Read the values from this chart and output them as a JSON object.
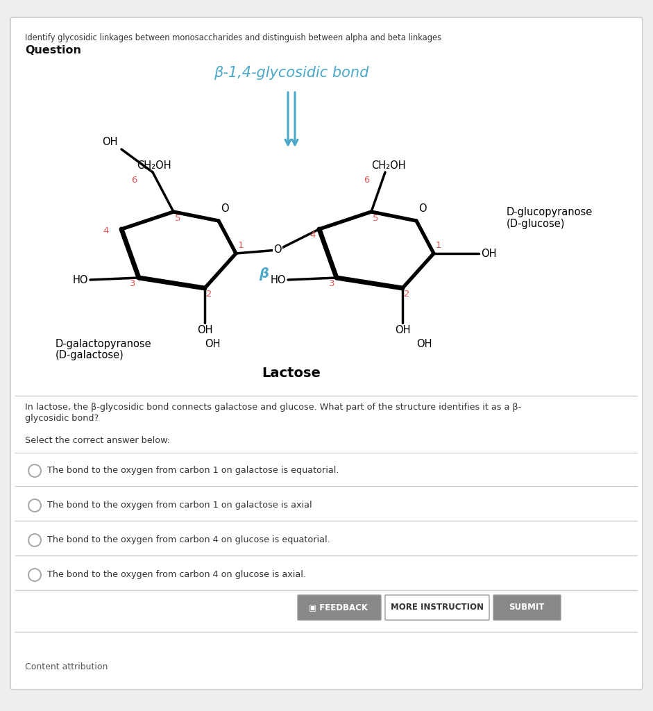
{
  "bg_color": "#ffffff",
  "outer_border_color": "#cccccc",
  "header_text": "Identify glycosidic linkages between monosaccharides and distinguish between alpha and beta linkages",
  "question_label": "Question",
  "bond_title": "β-1,4-glycosidic bond",
  "bond_title_color": "#4aa8c8",
  "lactose_label": "Lactose",
  "d_galactose_label1": "D-galactopyranose",
  "d_galactose_label2": "(D-galactose)",
  "d_glucose_label1": "D-glucopyranose",
  "d_glucose_label2": "(D-glucose)",
  "question_text1": "In lactose, the β-glycosidic bond connects galactose and glucose. What part of the structure identifies it as a β-",
  "question_text2": "glycosidic bond?",
  "select_text": "Select the correct answer below:",
  "options": [
    "The bond to the oxygen from carbon 1 on galactose is equatorial.",
    "The bond to the oxygen from carbon 1 on galactose is axial",
    "The bond to the oxygen from carbon 4 on glucose is equatorial.",
    "The bond to the oxygen from carbon 4 on glucose is axial."
  ],
  "divider_color": "#cccccc",
  "number_color": "#e05555",
  "ring_color": "#000000",
  "arrow_color": "#4aa8c8",
  "beta_color": "#4aa8c8",
  "content_attr": "Content attribution",
  "fig_bg": "#eeeeee"
}
